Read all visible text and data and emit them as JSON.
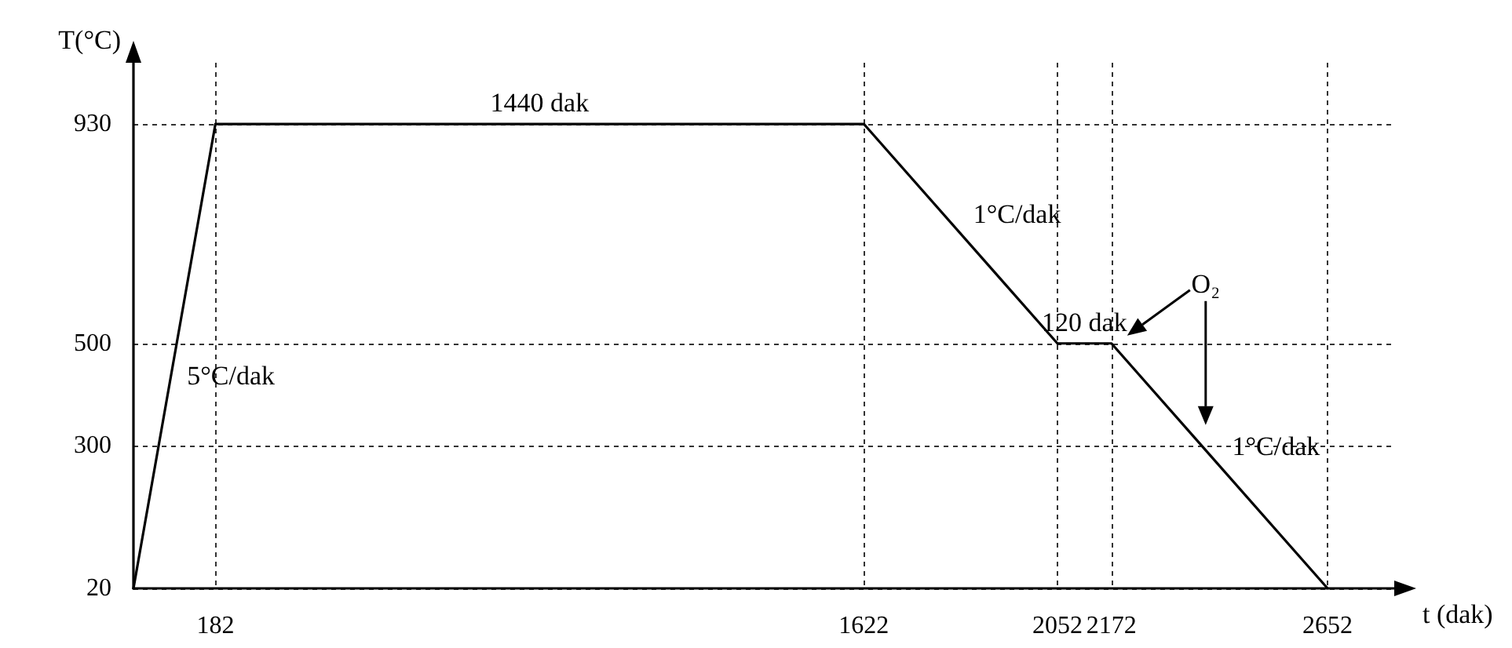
{
  "chart_data": {
    "type": "line",
    "xlabel": "t (dak)",
    "ylabel": "T(°C)",
    "x": [
      0,
      182,
      1622,
      2052,
      2172,
      2652
    ],
    "values": [
      20,
      930,
      930,
      500,
      500,
      20
    ],
    "color": "#000000",
    "xlim": [
      0,
      2800
    ],
    "ylim": [
      20,
      1050
    ],
    "xticks": [
      182,
      1622,
      2052,
      2172,
      2652
    ],
    "yticks": [
      20,
      300,
      500,
      930
    ],
    "grid": true,
    "annotations": [
      {
        "text": "1440 dak",
        "x": 902,
        "y": 930
      },
      {
        "text": "1°C/dak",
        "x": 1837,
        "y": 715
      },
      {
        "text": "120 dak",
        "x": 2112,
        "y": 500
      },
      "O₂",
      {
        "text": "5°C/dak",
        "x": 91,
        "y": 475
      },
      {
        "text": "1°C/dak",
        "x": 2412,
        "y": 260
      }
    ]
  }
}
